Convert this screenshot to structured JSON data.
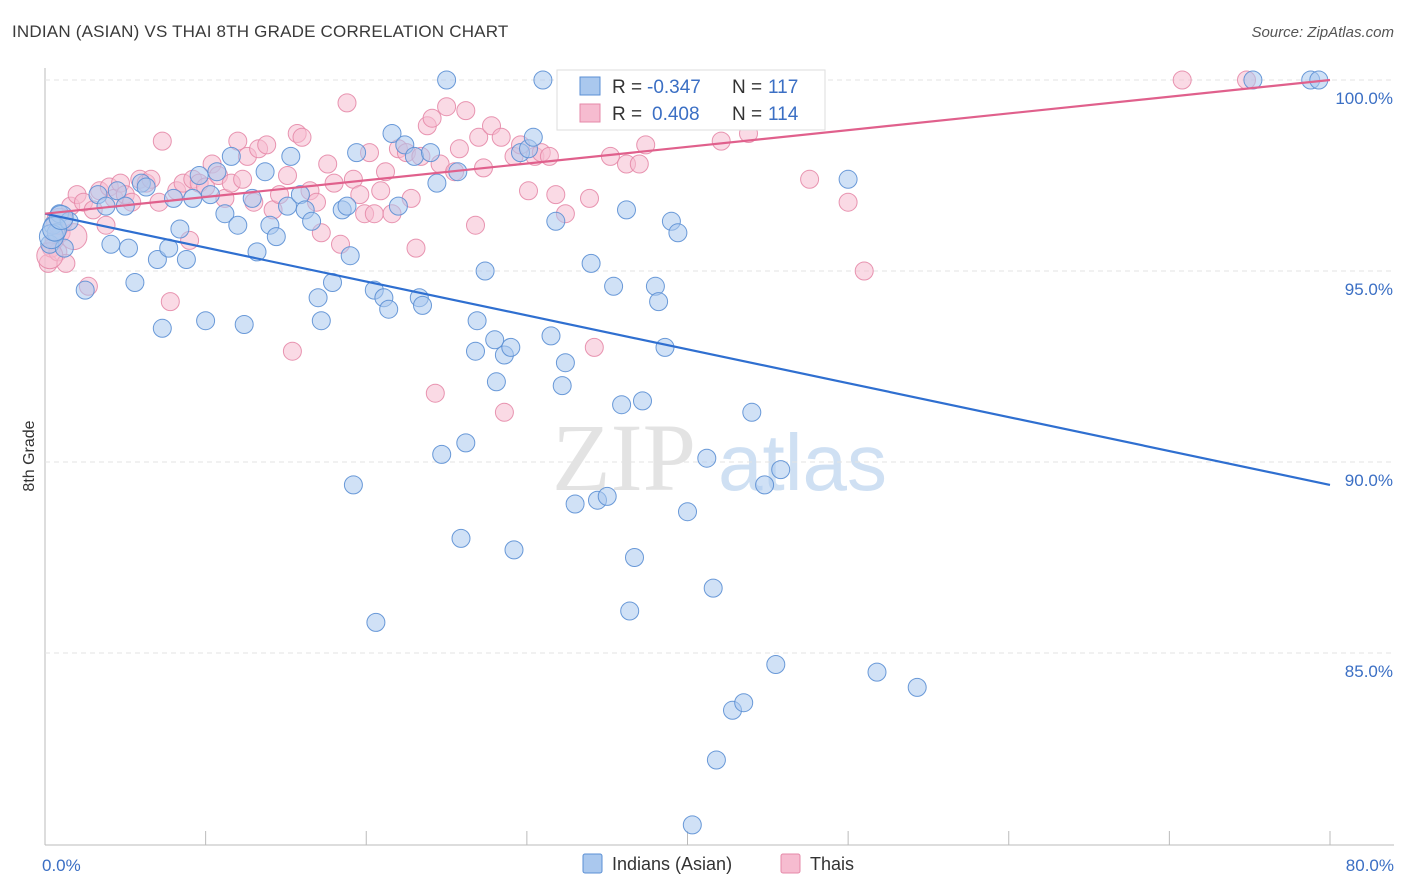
{
  "header": {
    "title": "INDIAN (ASIAN) VS THAI 8TH GRADE CORRELATION CHART",
    "source": "Source: ZipAtlas.com"
  },
  "watermark": {
    "zip": "ZIP",
    "atlas": "atlas"
  },
  "stats": {
    "r_label": "R =",
    "n_label": "N =",
    "indians": {
      "r": "-0.347",
      "n": "117"
    },
    "thais": {
      "r": "0.408",
      "n": "114"
    }
  },
  "colors": {
    "indians_fill": "#aac8ee",
    "indians_stroke": "#5b8fd4",
    "indians_line": "#2f6fd0",
    "thais_fill": "#f6bcd0",
    "thais_stroke": "#e589a8",
    "thais_line": "#e0608c",
    "value_text": "#3b6fc4"
  },
  "chart_data": {
    "type": "scatter",
    "title": "INDIAN (ASIAN) VS THAI 8TH GRADE CORRELATION CHART",
    "xlabel": "",
    "ylabel": "8th Grade",
    "xlim": [
      0,
      80
    ],
    "ylim": [
      80.5,
      100.5
    ],
    "x_tick_labels": [
      "0.0%",
      "80.0%"
    ],
    "y_tick_labels": [
      "100.0%",
      "95.0%",
      "90.0%",
      "85.0%"
    ],
    "y_ticks": [
      100,
      95,
      90,
      85
    ],
    "grid": true,
    "legend_position": "bottom-center",
    "series": [
      {
        "name": "Indians (Asian)",
        "trend": [
          [
            0,
            96.5
          ],
          [
            80,
            89.4
          ]
        ],
        "points": [
          [
            0.3,
            95.7
          ],
          [
            0.5,
            96.2
          ],
          [
            0.7,
            96.0
          ],
          [
            0.9,
            96.5
          ],
          [
            1.2,
            95.6
          ],
          [
            1.5,
            96.3
          ],
          [
            2.5,
            94.5
          ],
          [
            3.3,
            97.0
          ],
          [
            3.8,
            96.7
          ],
          [
            4.1,
            95.7
          ],
          [
            4.5,
            97.1
          ],
          [
            5.0,
            96.7
          ],
          [
            5.2,
            95.6
          ],
          [
            5.6,
            94.7
          ],
          [
            6.0,
            97.3
          ],
          [
            6.3,
            97.2
          ],
          [
            7.0,
            95.3
          ],
          [
            7.3,
            93.5
          ],
          [
            7.7,
            95.6
          ],
          [
            8.0,
            96.9
          ],
          [
            8.4,
            96.1
          ],
          [
            8.8,
            95.3
          ],
          [
            9.2,
            96.9
          ],
          [
            9.6,
            97.5
          ],
          [
            10.0,
            93.7
          ],
          [
            10.3,
            97.0
          ],
          [
            10.7,
            97.6
          ],
          [
            11.2,
            96.5
          ],
          [
            11.6,
            98.0
          ],
          [
            12.0,
            96.2
          ],
          [
            12.4,
            93.6
          ],
          [
            12.9,
            96.9
          ],
          [
            13.2,
            95.5
          ],
          [
            13.7,
            97.6
          ],
          [
            14.0,
            96.2
          ],
          [
            14.4,
            95.9
          ],
          [
            15.1,
            96.7
          ],
          [
            15.3,
            98.0
          ],
          [
            15.9,
            97.0
          ],
          [
            16.2,
            96.6
          ],
          [
            16.6,
            96.3
          ],
          [
            17.0,
            94.3
          ],
          [
            17.2,
            93.7
          ],
          [
            17.9,
            94.7
          ],
          [
            18.5,
            96.6
          ],
          [
            18.8,
            96.7
          ],
          [
            19.0,
            95.4
          ],
          [
            19.2,
            89.4
          ],
          [
            19.4,
            98.1
          ],
          [
            20.5,
            94.5
          ],
          [
            20.6,
            85.8
          ],
          [
            21.1,
            94.3
          ],
          [
            21.4,
            94.0
          ],
          [
            21.6,
            98.6
          ],
          [
            22.0,
            96.7
          ],
          [
            22.4,
            98.3
          ],
          [
            23.0,
            98.0
          ],
          [
            23.3,
            94.3
          ],
          [
            23.5,
            94.1
          ],
          [
            24.0,
            98.1
          ],
          [
            24.4,
            97.3
          ],
          [
            24.7,
            90.2
          ],
          [
            25.0,
            100.0
          ],
          [
            25.7,
            97.6
          ],
          [
            25.9,
            88.0
          ],
          [
            26.2,
            90.5
          ],
          [
            26.8,
            92.9
          ],
          [
            26.9,
            93.7
          ],
          [
            27.4,
            95.0
          ],
          [
            28.0,
            93.2
          ],
          [
            28.1,
            92.1
          ],
          [
            28.6,
            92.8
          ],
          [
            29.0,
            93.0
          ],
          [
            29.2,
            87.7
          ],
          [
            29.6,
            98.1
          ],
          [
            30.1,
            98.2
          ],
          [
            30.4,
            98.5
          ],
          [
            31.0,
            100.0
          ],
          [
            31.5,
            93.3
          ],
          [
            31.8,
            96.3
          ],
          [
            32.2,
            92.0
          ],
          [
            32.4,
            92.6
          ],
          [
            33.0,
            88.9
          ],
          [
            34.0,
            95.2
          ],
          [
            34.4,
            89.0
          ],
          [
            35.0,
            89.1
          ],
          [
            35.4,
            94.6
          ],
          [
            35.9,
            91.5
          ],
          [
            36.2,
            96.6
          ],
          [
            36.4,
            86.1
          ],
          [
            36.7,
            87.5
          ],
          [
            37.2,
            91.6
          ],
          [
            38.0,
            94.6
          ],
          [
            38.2,
            94.2
          ],
          [
            38.6,
            93.0
          ],
          [
            39.0,
            96.3
          ],
          [
            39.4,
            96.0
          ],
          [
            40.0,
            88.7
          ],
          [
            40.3,
            80.5
          ],
          [
            41.2,
            90.1
          ],
          [
            41.6,
            86.7
          ],
          [
            41.8,
            82.2
          ],
          [
            42.8,
            83.5
          ],
          [
            43.5,
            83.7
          ],
          [
            44.0,
            91.3
          ],
          [
            44.8,
            89.4
          ],
          [
            45.5,
            84.7
          ],
          [
            45.8,
            89.8
          ],
          [
            50.0,
            97.4
          ],
          [
            51.8,
            84.5
          ],
          [
            54.3,
            84.1
          ],
          [
            75.2,
            100.0
          ],
          [
            78.8,
            100.0
          ],
          [
            79.3,
            100.0
          ],
          [
            0.4,
            95.9
          ],
          [
            0.6,
            96.1
          ],
          [
            1.0,
            96.4
          ]
        ]
      },
      {
        "name": "Thais",
        "trend": [
          [
            0,
            96.5
          ],
          [
            80,
            100.0
          ]
        ],
        "points": [
          [
            0.2,
            95.2
          ],
          [
            0.4,
            95.6
          ],
          [
            0.6,
            95.8
          ],
          [
            0.8,
            95.5
          ],
          [
            1.0,
            96.0
          ],
          [
            1.3,
            95.2
          ],
          [
            1.6,
            96.7
          ],
          [
            2.0,
            97.0
          ],
          [
            2.4,
            96.8
          ],
          [
            2.7,
            94.6
          ],
          [
            3.0,
            96.6
          ],
          [
            3.4,
            97.1
          ],
          [
            3.8,
            96.2
          ],
          [
            4.0,
            97.2
          ],
          [
            4.3,
            96.9
          ],
          [
            4.7,
            97.3
          ],
          [
            5.0,
            97.0
          ],
          [
            5.4,
            96.8
          ],
          [
            5.9,
            97.4
          ],
          [
            6.3,
            97.3
          ],
          [
            6.6,
            97.4
          ],
          [
            7.1,
            96.8
          ],
          [
            7.3,
            98.4
          ],
          [
            7.8,
            94.2
          ],
          [
            8.2,
            97.1
          ],
          [
            8.6,
            97.3
          ],
          [
            9.0,
            95.8
          ],
          [
            9.2,
            97.4
          ],
          [
            9.6,
            97.3
          ],
          [
            10.0,
            97.2
          ],
          [
            10.4,
            97.8
          ],
          [
            10.8,
            97.5
          ],
          [
            11.2,
            96.9
          ],
          [
            11.6,
            97.3
          ],
          [
            12.0,
            98.4
          ],
          [
            12.3,
            97.4
          ],
          [
            12.6,
            98.0
          ],
          [
            13.0,
            96.8
          ],
          [
            13.3,
            98.2
          ],
          [
            13.8,
            98.3
          ],
          [
            14.2,
            96.6
          ],
          [
            14.6,
            97.0
          ],
          [
            15.1,
            97.5
          ],
          [
            15.4,
            92.9
          ],
          [
            15.7,
            98.6
          ],
          [
            16.0,
            98.5
          ],
          [
            16.5,
            97.1
          ],
          [
            16.9,
            96.8
          ],
          [
            17.2,
            96.0
          ],
          [
            17.6,
            97.8
          ],
          [
            18.0,
            97.3
          ],
          [
            18.4,
            95.7
          ],
          [
            18.8,
            99.4
          ],
          [
            19.2,
            97.4
          ],
          [
            19.6,
            97.0
          ],
          [
            19.9,
            96.5
          ],
          [
            20.2,
            98.1
          ],
          [
            20.5,
            96.5
          ],
          [
            20.9,
            97.1
          ],
          [
            21.2,
            97.6
          ],
          [
            21.6,
            96.5
          ],
          [
            22.0,
            98.2
          ],
          [
            22.5,
            98.1
          ],
          [
            22.8,
            96.9
          ],
          [
            23.1,
            95.6
          ],
          [
            23.4,
            98.0
          ],
          [
            23.8,
            98.8
          ],
          [
            24.1,
            99.0
          ],
          [
            24.3,
            91.8
          ],
          [
            24.6,
            97.8
          ],
          [
            25.0,
            99.3
          ],
          [
            25.5,
            97.6
          ],
          [
            25.8,
            98.2
          ],
          [
            26.2,
            99.2
          ],
          [
            26.8,
            96.2
          ],
          [
            27.0,
            98.5
          ],
          [
            27.3,
            97.7
          ],
          [
            27.8,
            98.8
          ],
          [
            28.4,
            98.5
          ],
          [
            28.6,
            91.3
          ],
          [
            29.2,
            98.0
          ],
          [
            29.6,
            98.3
          ],
          [
            30.1,
            97.1
          ],
          [
            30.5,
            98.0
          ],
          [
            30.9,
            98.1
          ],
          [
            31.4,
            98.0
          ],
          [
            31.8,
            97.0
          ],
          [
            32.4,
            96.5
          ],
          [
            33.2,
            99.3
          ],
          [
            33.9,
            96.9
          ],
          [
            34.2,
            93.0
          ],
          [
            34.6,
            99.6
          ],
          [
            35.2,
            98.0
          ],
          [
            35.5,
            99.0
          ],
          [
            36.2,
            97.8
          ],
          [
            37.0,
            97.8
          ],
          [
            37.4,
            98.3
          ],
          [
            38.0,
            99.2
          ],
          [
            38.7,
            100.0
          ],
          [
            39.0,
            99.3
          ],
          [
            39.3,
            99.7
          ],
          [
            40.6,
            99.7
          ],
          [
            42.1,
            98.4
          ],
          [
            43.8,
            98.6
          ],
          [
            44.6,
            99.1
          ],
          [
            46.4,
            100.0
          ],
          [
            47.6,
            97.4
          ],
          [
            50.0,
            96.8
          ],
          [
            51.0,
            95.0
          ],
          [
            70.8,
            100.0
          ],
          [
            74.8,
            100.0
          ],
          [
            0.3,
            95.4
          ],
          [
            0.9,
            96.3
          ],
          [
            1.8,
            95.9
          ]
        ]
      }
    ]
  },
  "legend": {
    "indians_label": "Indians (Asian)",
    "thais_label": "Thais"
  }
}
